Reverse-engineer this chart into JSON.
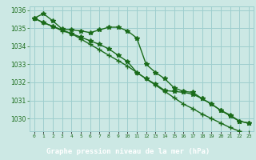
{
  "title": "Graphe pression niveau de la mer (hPa)",
  "x_labels": [
    "0",
    "1",
    "2",
    "3",
    "4",
    "5",
    "6",
    "7",
    "8",
    "9",
    "10",
    "11",
    "12",
    "13",
    "14",
    "15",
    "16",
    "17",
    "18",
    "19",
    "20",
    "21",
    "22",
    "23"
  ],
  "x_values": [
    0,
    1,
    2,
    3,
    4,
    5,
    6,
    7,
    8,
    9,
    10,
    11,
    12,
    13,
    14,
    15,
    16,
    17,
    18,
    19,
    20,
    21,
    22,
    23
  ],
  "series1": [
    1035.55,
    1035.8,
    1035.4,
    1034.95,
    1034.9,
    1034.85,
    1034.75,
    1034.9,
    1035.05,
    1035.05,
    1034.85,
    1034.45,
    1033.0,
    1032.55,
    1032.2,
    1031.7,
    1031.5,
    1031.45,
    1031.1,
    1030.8,
    1030.45,
    1030.2,
    1029.85,
    1029.75
  ],
  "series2": [
    1035.55,
    1035.3,
    1035.1,
    1034.9,
    1034.7,
    1034.5,
    1034.3,
    1034.1,
    1033.85,
    1033.5,
    1033.15,
    1032.55,
    1032.2,
    1031.9,
    1031.55,
    1031.5,
    1031.45,
    1031.35,
    1031.1,
    1030.8,
    1030.45,
    1030.15,
    1029.85,
    1029.75
  ],
  "series3": [
    1035.55,
    1035.3,
    1035.1,
    1034.85,
    1034.7,
    1034.4,
    1034.1,
    1033.8,
    1033.5,
    1033.2,
    1032.9,
    1032.55,
    1032.2,
    1031.85,
    1031.5,
    1031.15,
    1030.8,
    1030.55,
    1030.25,
    1030.0,
    1029.75,
    1029.5,
    1029.3,
    1029.2
  ],
  "line_color": "#1a6b1a",
  "marker_color": "#1a6b1a",
  "bg_color": "#cce8e4",
  "grid_color": "#9ecece",
  "title_bg_color": "#2e7d4f",
  "title_text_color": "#ffffff",
  "ylim": [
    1029.3,
    1036.2
  ],
  "yticks": [
    1030,
    1031,
    1032,
    1033,
    1034,
    1035,
    1036
  ]
}
